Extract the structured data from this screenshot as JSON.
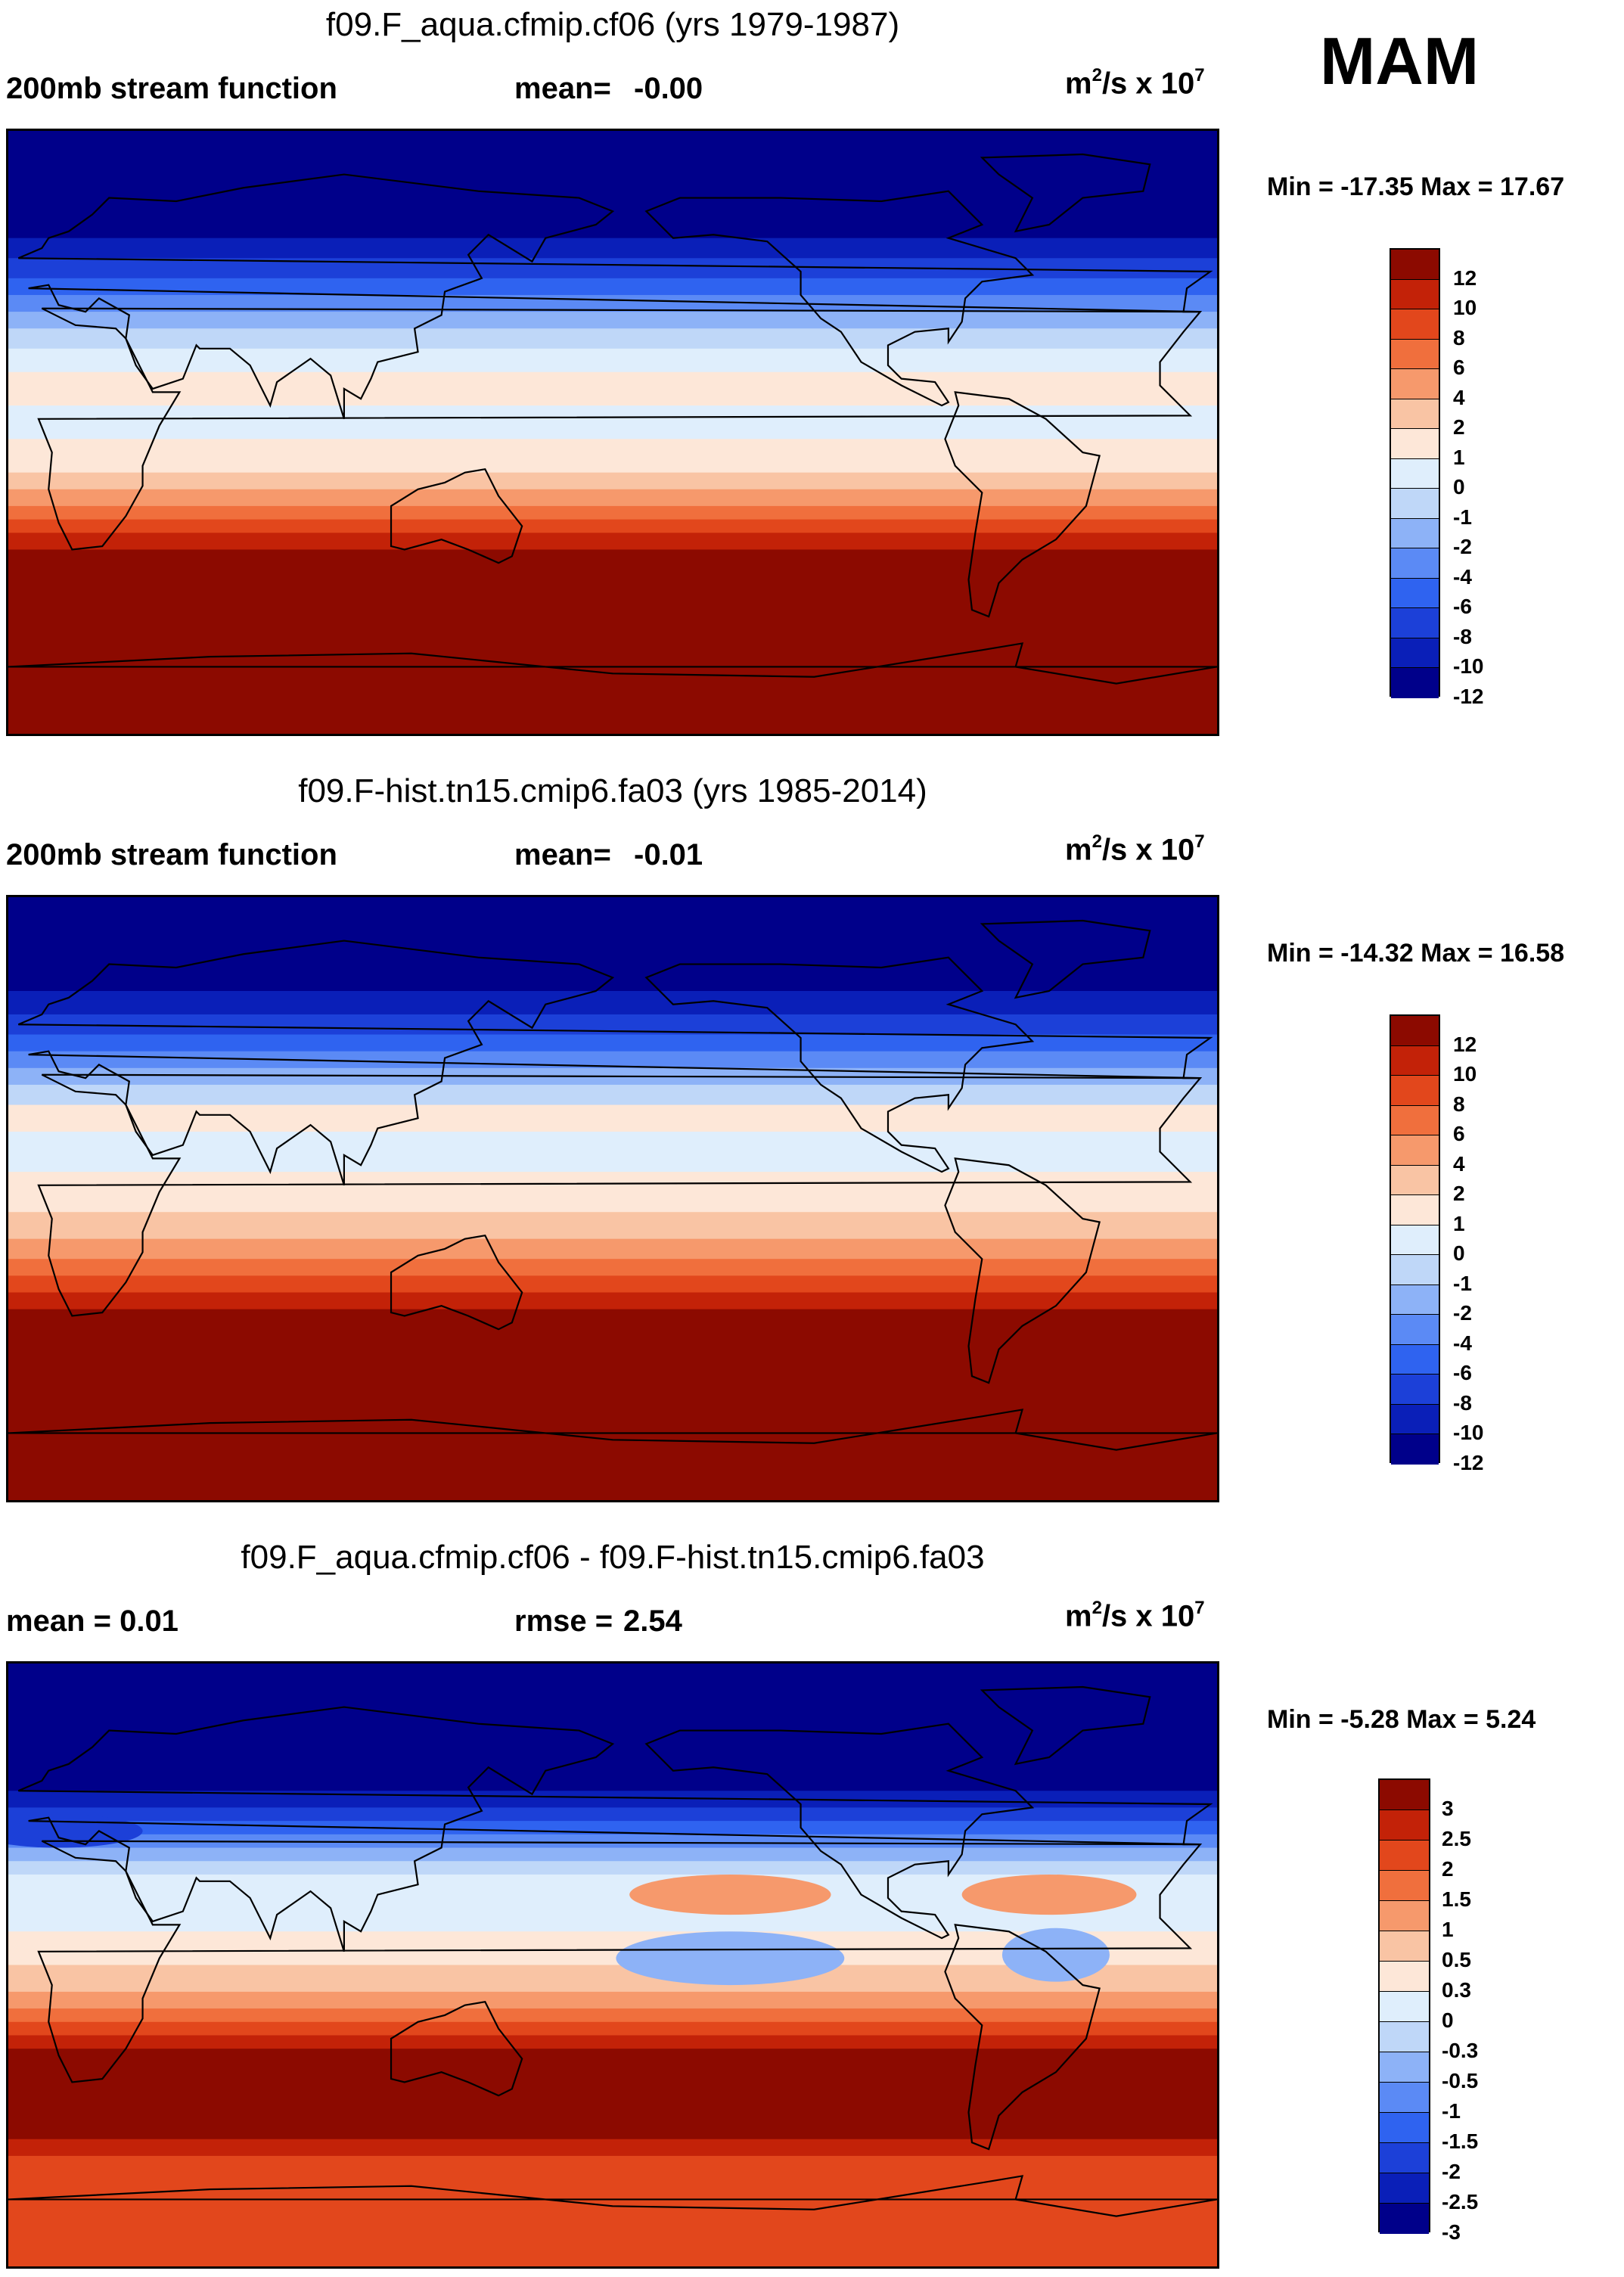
{
  "season": "MAM",
  "chart_data": [
    {
      "type": "heatmap",
      "title": "f09.F_aqua.cfmip.cf06 (yrs 1979-1987)",
      "variable_label": "200mb stream function",
      "stat_label": "mean=",
      "stat_value": "-0.00",
      "units_base": "m",
      "units_exp": "2",
      "units_mid": "/s x 10",
      "units_exp2": "7",
      "min_max": "Min = -17.35 Max =  17.67",
      "min": -17.35,
      "max": 17.67,
      "colorbar_labels": [
        "12",
        "10",
        "8",
        "6",
        "4",
        "2",
        "1",
        "0",
        "-1",
        "-2",
        "-4",
        "-6",
        "-8",
        "-10",
        "-12"
      ],
      "bands": [
        {
          "lat": 90,
          "value": -14
        },
        {
          "lat": 66,
          "value": -14
        },
        {
          "lat": 58,
          "value": -12
        },
        {
          "lat": 52,
          "value": -11
        },
        {
          "lat": 46,
          "value": -9
        },
        {
          "lat": 41,
          "value": -7
        },
        {
          "lat": 36,
          "value": -5
        },
        {
          "lat": 31,
          "value": -3
        },
        {
          "lat": 25,
          "value": -1.5
        },
        {
          "lat": 18,
          "value": -0.5
        },
        {
          "lat": 8,
          "value": 0.5
        },
        {
          "lat": -2,
          "value": -0.5
        },
        {
          "lat": -12,
          "value": 0.5
        },
        {
          "lat": -17,
          "value": 1.5
        },
        {
          "lat": -22,
          "value": 3
        },
        {
          "lat": -26,
          "value": 5
        },
        {
          "lat": -30,
          "value": 7
        },
        {
          "lat": -35,
          "value": 9
        },
        {
          "lat": -39,
          "value": 11
        },
        {
          "lat": -44,
          "value": 14
        },
        {
          "lat": -90,
          "value": 14
        }
      ],
      "anomalies": []
    },
    {
      "type": "heatmap",
      "title": "f09.F-hist.tn15.cmip6.fa03 (yrs 1985-2014)",
      "variable_label": "200mb stream function",
      "stat_label": "mean=",
      "stat_value": "-0.01",
      "units_base": "m",
      "units_exp": "2",
      "units_mid": "/s x 10",
      "units_exp2": "7",
      "min_max": "Min = -14.32 Max =  16.58",
      "min": -14.32,
      "max": 16.58,
      "colorbar_labels": [
        "12",
        "10",
        "8",
        "6",
        "4",
        "2",
        "1",
        "0",
        "-1",
        "-2",
        "-4",
        "-6",
        "-8",
        "-10",
        "-12"
      ],
      "bands": [
        {
          "lat": 90,
          "value": -14
        },
        {
          "lat": 70,
          "value": -14
        },
        {
          "lat": 62,
          "value": -12
        },
        {
          "lat": 55,
          "value": -11
        },
        {
          "lat": 49,
          "value": -9
        },
        {
          "lat": 44,
          "value": -7
        },
        {
          "lat": 39,
          "value": -5
        },
        {
          "lat": 34,
          "value": -3
        },
        {
          "lat": 28,
          "value": -1.5
        },
        {
          "lat": 20,
          "value": 0.5
        },
        {
          "lat": 8,
          "value": -0.5
        },
        {
          "lat": -4,
          "value": 0.5
        },
        {
          "lat": -12,
          "value": 1.5
        },
        {
          "lat": -18,
          "value": 3
        },
        {
          "lat": -23,
          "value": 5
        },
        {
          "lat": -28,
          "value": 7
        },
        {
          "lat": -33,
          "value": 9
        },
        {
          "lat": -38,
          "value": 11
        },
        {
          "lat": -43,
          "value": 14
        },
        {
          "lat": -90,
          "value": 14
        }
      ],
      "anomalies": []
    },
    {
      "type": "heatmap",
      "title": "f09.F_aqua.cfmip.cf06 - f09.F-hist.tn15.cmip6.fa03",
      "variable_label": "mean =   0.01",
      "stat_label": "rmse =",
      "stat_value": "2.54",
      "units_base": "m",
      "units_exp": "2",
      "units_mid": "/s x 10",
      "units_exp2": "7",
      "min_max": "Min =  -5.28 Max =   5.24",
      "min": -5.28,
      "max": 5.24,
      "colorbar_labels": [
        "3",
        "2.5",
        "2",
        "1.5",
        "1",
        "0.5",
        "0.3",
        "0",
        "-0.3",
        "-0.5",
        "-1",
        "-1.5",
        "-2",
        "-2.5",
        "-3"
      ],
      "bands": [
        {
          "lat": 90,
          "value": -3.3
        },
        {
          "lat": 52,
          "value": -3.3
        },
        {
          "lat": 47,
          "value": -2.7
        },
        {
          "lat": 43,
          "value": -2.2
        },
        {
          "lat": 39,
          "value": -1.7
        },
        {
          "lat": 35,
          "value": -1.2
        },
        {
          "lat": 31,
          "value": -0.7
        },
        {
          "lat": 27,
          "value": -0.4
        },
        {
          "lat": 20,
          "value": -0.1
        },
        {
          "lat": 10,
          "value": -0.2
        },
        {
          "lat": 0,
          "value": 0.1
        },
        {
          "lat": -8,
          "value": 0.4
        },
        {
          "lat": -13,
          "value": 0.7
        },
        {
          "lat": -17,
          "value": 1.2
        },
        {
          "lat": -21,
          "value": 1.7
        },
        {
          "lat": -25,
          "value": 2.2
        },
        {
          "lat": -30,
          "value": 2.7
        },
        {
          "lat": -35,
          "value": 3.3
        },
        {
          "lat": -52,
          "value": 3.3
        },
        {
          "lat": -57,
          "value": 2.2
        },
        {
          "lat": -63,
          "value": 1.7
        },
        {
          "lat": -90,
          "value": 1.7
        }
      ],
      "anomalies": [
        {
          "lon": 215,
          "lat": 21,
          "rlon": 30,
          "rlat": 6,
          "value": 0.7
        },
        {
          "lon": 310,
          "lat": 21,
          "rlon": 26,
          "rlat": 6,
          "value": 0.7
        },
        {
          "lon": 215,
          "lat": 2,
          "rlon": 34,
          "rlat": 8,
          "value": -0.7
        },
        {
          "lon": 312,
          "lat": 3,
          "rlon": 16,
          "rlat": 8,
          "value": -0.7
        },
        {
          "lon": 15,
          "lat": 40,
          "rlon": 25,
          "rlat": 5,
          "value": -2.2
        }
      ]
    }
  ]
}
